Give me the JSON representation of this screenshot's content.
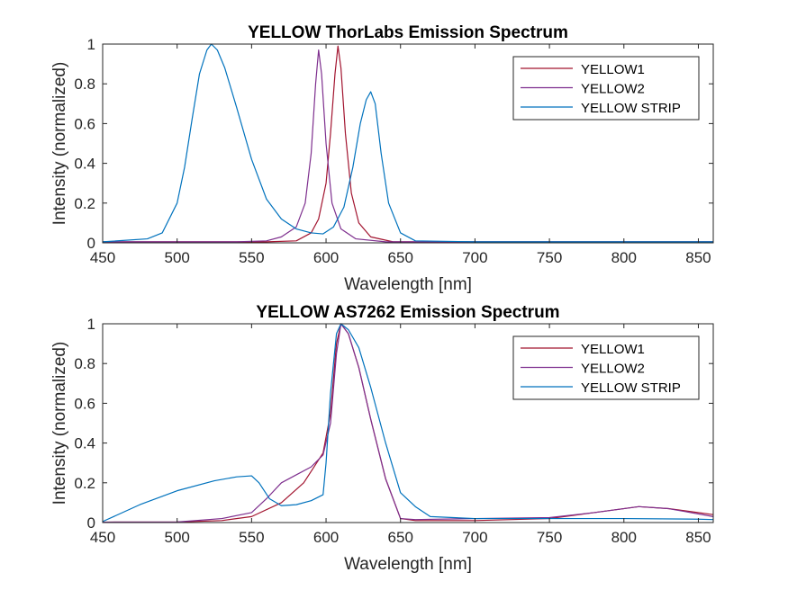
{
  "chart_data": [
    {
      "type": "line",
      "title": "YELLOW ThorLabs Emission Spectrum",
      "xlabel": "Wavelength [nm]",
      "ylabel": "Intensity (normalized)",
      "xlim": [
        450,
        860
      ],
      "ylim": [
        0,
        1
      ],
      "xticks": [
        450,
        500,
        550,
        600,
        650,
        700,
        750,
        800,
        850
      ],
      "yticks": [
        0,
        0.2,
        0.4,
        0.6,
        0.8,
        1
      ],
      "ytick_labels": [
        "0",
        "0.2",
        "0.4",
        "0.6",
        "0.8",
        "1"
      ],
      "grid": false,
      "legend_position": "top-right",
      "series": [
        {
          "name": "YELLOW1",
          "color": "#a2142f",
          "x": [
            450,
            560,
            580,
            590,
            595,
            600,
            603,
            606,
            608,
            610,
            613,
            617,
            622,
            630,
            645,
            860
          ],
          "y": [
            0.005,
            0.005,
            0.01,
            0.05,
            0.12,
            0.3,
            0.55,
            0.85,
            0.99,
            0.88,
            0.55,
            0.25,
            0.1,
            0.03,
            0.005,
            0.005
          ]
        },
        {
          "name": "YELLOW2",
          "color": "#7e2f8e",
          "x": [
            450,
            540,
            560,
            570,
            580,
            586,
            590,
            593,
            595,
            597,
            600,
            604,
            610,
            620,
            640,
            860
          ],
          "y": [
            0.005,
            0.005,
            0.01,
            0.03,
            0.08,
            0.2,
            0.45,
            0.8,
            0.97,
            0.85,
            0.5,
            0.2,
            0.07,
            0.02,
            0.005,
            0.005
          ]
        },
        {
          "name": "YELLOW STRIP",
          "color": "#0072bd",
          "x": [
            450,
            480,
            490,
            500,
            505,
            510,
            515,
            520,
            523,
            527,
            532,
            540,
            550,
            560,
            570,
            580,
            590,
            598,
            605,
            612,
            618,
            623,
            627,
            630,
            633,
            637,
            642,
            650,
            660,
            700,
            860
          ],
          "y": [
            0.005,
            0.02,
            0.05,
            0.2,
            0.38,
            0.62,
            0.85,
            0.97,
            1.0,
            0.97,
            0.88,
            0.68,
            0.42,
            0.22,
            0.12,
            0.07,
            0.05,
            0.045,
            0.08,
            0.18,
            0.38,
            0.6,
            0.72,
            0.76,
            0.7,
            0.45,
            0.2,
            0.05,
            0.01,
            0.005,
            0.005
          ]
        }
      ]
    },
    {
      "type": "line",
      "title": "YELLOW AS7262 Emission Spectrum",
      "xlabel": "Wavelength [nm]",
      "ylabel": "Intensity (normalized)",
      "xlim": [
        450,
        860
      ],
      "ylim": [
        0,
        1
      ],
      "xticks": [
        450,
        500,
        550,
        600,
        650,
        700,
        750,
        800,
        850
      ],
      "yticks": [
        0,
        0.2,
        0.4,
        0.6,
        0.8,
        1
      ],
      "ytick_labels": [
        "0",
        "0.2",
        "0.4",
        "0.6",
        "0.8",
        "1"
      ],
      "grid": false,
      "legend_position": "top-right",
      "series": [
        {
          "name": "YELLOW1",
          "color": "#a2142f",
          "x": [
            450,
            500,
            530,
            550,
            570,
            585,
            598,
            603,
            607,
            610,
            615,
            622,
            630,
            640,
            650,
            660,
            700,
            750,
            780,
            810,
            830,
            860
          ],
          "y": [
            0.002,
            0.003,
            0.01,
            0.03,
            0.1,
            0.2,
            0.35,
            0.55,
            0.9,
            1.0,
            0.95,
            0.78,
            0.52,
            0.22,
            0.02,
            0.01,
            0.01,
            0.02,
            0.05,
            0.08,
            0.07,
            0.04
          ]
        },
        {
          "name": "YELLOW2",
          "color": "#7e2f8e",
          "x": [
            450,
            500,
            530,
            550,
            560,
            570,
            580,
            590,
            598,
            603,
            607,
            610,
            615,
            622,
            630,
            640,
            650,
            660,
            700,
            750,
            780,
            810,
            830,
            860
          ],
          "y": [
            0.002,
            0.003,
            0.02,
            0.05,
            0.12,
            0.2,
            0.24,
            0.28,
            0.34,
            0.5,
            0.85,
            1.0,
            0.95,
            0.78,
            0.52,
            0.22,
            0.02,
            0.015,
            0.02,
            0.025,
            0.05,
            0.08,
            0.07,
            0.03
          ]
        },
        {
          "name": "YELLOW STRIP",
          "color": "#0072bd",
          "x": [
            450,
            475,
            500,
            525,
            540,
            550,
            555,
            562,
            570,
            580,
            590,
            598,
            600,
            603,
            607,
            610,
            615,
            622,
            630,
            640,
            650,
            660,
            670,
            700,
            750,
            800,
            850,
            860
          ],
          "y": [
            0.005,
            0.09,
            0.16,
            0.21,
            0.23,
            0.235,
            0.2,
            0.12,
            0.085,
            0.09,
            0.11,
            0.14,
            0.3,
            0.65,
            0.95,
            1.0,
            0.97,
            0.88,
            0.68,
            0.4,
            0.15,
            0.08,
            0.03,
            0.02,
            0.02,
            0.02,
            0.017,
            0.015
          ]
        }
      ]
    }
  ]
}
